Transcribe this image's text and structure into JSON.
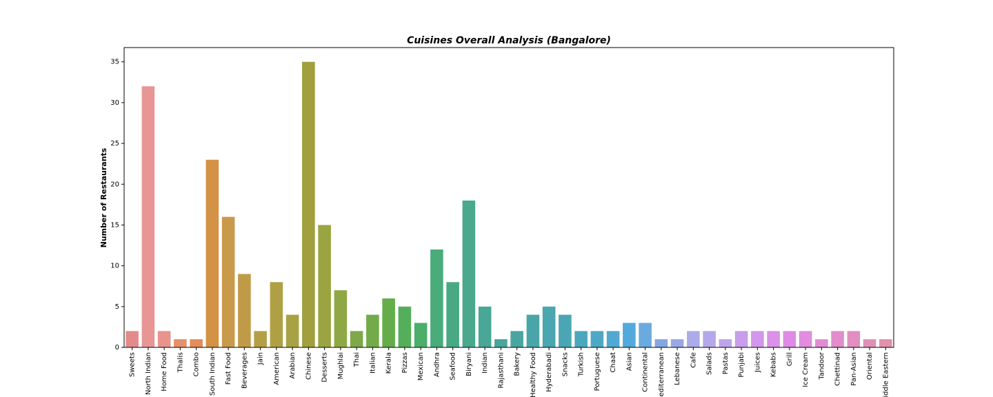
{
  "chart_data": {
    "type": "bar",
    "title": "Cuisines Overall Analysis (Bangalore)",
    "xlabel": "",
    "ylabel": "Number of Restaurants",
    "ylim": [
      0,
      36.75
    ],
    "yticks": [
      0,
      5,
      10,
      15,
      20,
      25,
      30,
      35
    ],
    "grid": false,
    "categories": [
      "Sweets",
      "North Indian",
      "Home Food",
      "Thalis",
      "Combo",
      "South Indian",
      "Fast Food",
      "Beverages",
      "Jain",
      "American",
      "Arabian",
      "Chinese",
      "Desserts",
      "Mughlai",
      "Thai",
      "Italian",
      "Kerala",
      "Pizzas",
      "Mexican",
      "Andhra",
      "Seafood",
      "Biryani",
      "Indian",
      "Rajasthani",
      "Bakery",
      "Healthy Food",
      "Hyderabadi",
      "Snacks",
      "Turkish",
      "Portuguese",
      "Chaat",
      "Asian",
      "Continental",
      "Mediterranean",
      "Lebanese",
      "Cafe",
      "Salads",
      "Pastas",
      "Punjabi",
      "Juices",
      "Kebabs",
      "Grill",
      "Ice Cream",
      "Tandoor",
      "Chettinad",
      "Pan-Asian",
      "Oriental",
      "Middle Eastern"
    ],
    "values": [
      2,
      32,
      2,
      1,
      1,
      23,
      16,
      9,
      2,
      8,
      4,
      35,
      15,
      7,
      2,
      4,
      6,
      5,
      3,
      12,
      8,
      18,
      5,
      1,
      2,
      4,
      5,
      4,
      2,
      2,
      2,
      3,
      3,
      1,
      1,
      2,
      2,
      1,
      2,
      2,
      2,
      2,
      2,
      1,
      2,
      2,
      1,
      1
    ],
    "colors": [
      "#e58a8a",
      "#e89595",
      "#e8938c",
      "#e69169",
      "#e58c5a",
      "#d49247",
      "#c99a4b",
      "#bf9b47",
      "#b59f45",
      "#b0a044",
      "#a9a244",
      "#a19f3e",
      "#9aa541",
      "#8fa845",
      "#7ea849",
      "#73ab4a",
      "#65ad4a",
      "#55ae5a",
      "#4bae6a",
      "#4aab7b",
      "#4aa985",
      "#4aa88d",
      "#49a797",
      "#49a59d",
      "#4aa5a1",
      "#4aa5a8",
      "#4aa6af",
      "#4aa6b5",
      "#4ba7bd",
      "#4ea8c5",
      "#51a8d0",
      "#54a9dc",
      "#6aaae0",
      "#85a6e3",
      "#9ba6e6",
      "#ababe9",
      "#b4a8ea",
      "#bea4ea",
      "#c89deb",
      "#d296ea",
      "#da91e8",
      "#df8be6",
      "#e18cde",
      "#e28bd4",
      "#e28ccb",
      "#e28ec0",
      "#e28fb6",
      "#e290ab"
    ]
  }
}
